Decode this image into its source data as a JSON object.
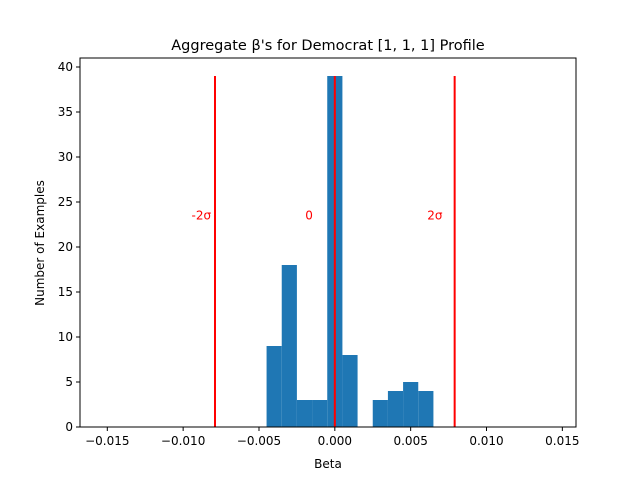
{
  "chart_data": {
    "type": "bar",
    "title": "Aggregate β's for Democrat [1, 1, 1] Profile",
    "xlabel": "Beta",
    "ylabel": "Number of Examples",
    "xlim": [
      -0.0168,
      0.0159
    ],
    "ylim": [
      0,
      41
    ],
    "xticks": [
      -0.015,
      -0.01,
      -0.005,
      0.0,
      0.005,
      0.01,
      0.015
    ],
    "xtick_labels": [
      "−0.015",
      "−0.010",
      "−0.005",
      "0.000",
      "0.005",
      "0.010",
      "0.015"
    ],
    "yticks": [
      0,
      5,
      10,
      15,
      20,
      25,
      30,
      35,
      40
    ],
    "ytick_labels": [
      "0",
      "5",
      "10",
      "15",
      "20",
      "25",
      "30",
      "35",
      "40"
    ],
    "grid": false,
    "bar_color": "#1f77b4",
    "bins": [
      {
        "x0": -0.0045,
        "x1": -0.0035,
        "count": 9
      },
      {
        "x0": -0.0035,
        "x1": -0.0025,
        "count": 18
      },
      {
        "x0": -0.0025,
        "x1": -0.0015,
        "count": 3
      },
      {
        "x0": -0.0015,
        "x1": -0.0005,
        "count": 3
      },
      {
        "x0": -0.0005,
        "x1": 0.0005,
        "count": 39
      },
      {
        "x0": 0.0005,
        "x1": 0.0015,
        "count": 8
      },
      {
        "x0": 0.0025,
        "x1": 0.0035,
        "count": 3
      },
      {
        "x0": 0.0035,
        "x1": 0.0045,
        "count": 4
      },
      {
        "x0": 0.0045,
        "x1": 0.0055,
        "count": 5
      },
      {
        "x0": 0.0055,
        "x1": 0.0065,
        "count": 4
      }
    ],
    "reference_lines": [
      {
        "x": -0.0079,
        "y_top": 39,
        "label": "-2σ",
        "label_y": 23.5,
        "label_x": -0.0088
      },
      {
        "x": 0.0,
        "y_top": 39,
        "label": "0",
        "label_y": 23.5,
        "label_x": -0.0017
      },
      {
        "x": 0.0079,
        "y_top": 39,
        "label": "2σ",
        "label_y": 23.5,
        "label_x": 0.0066
      }
    ],
    "reference_color": "#ff0000"
  }
}
